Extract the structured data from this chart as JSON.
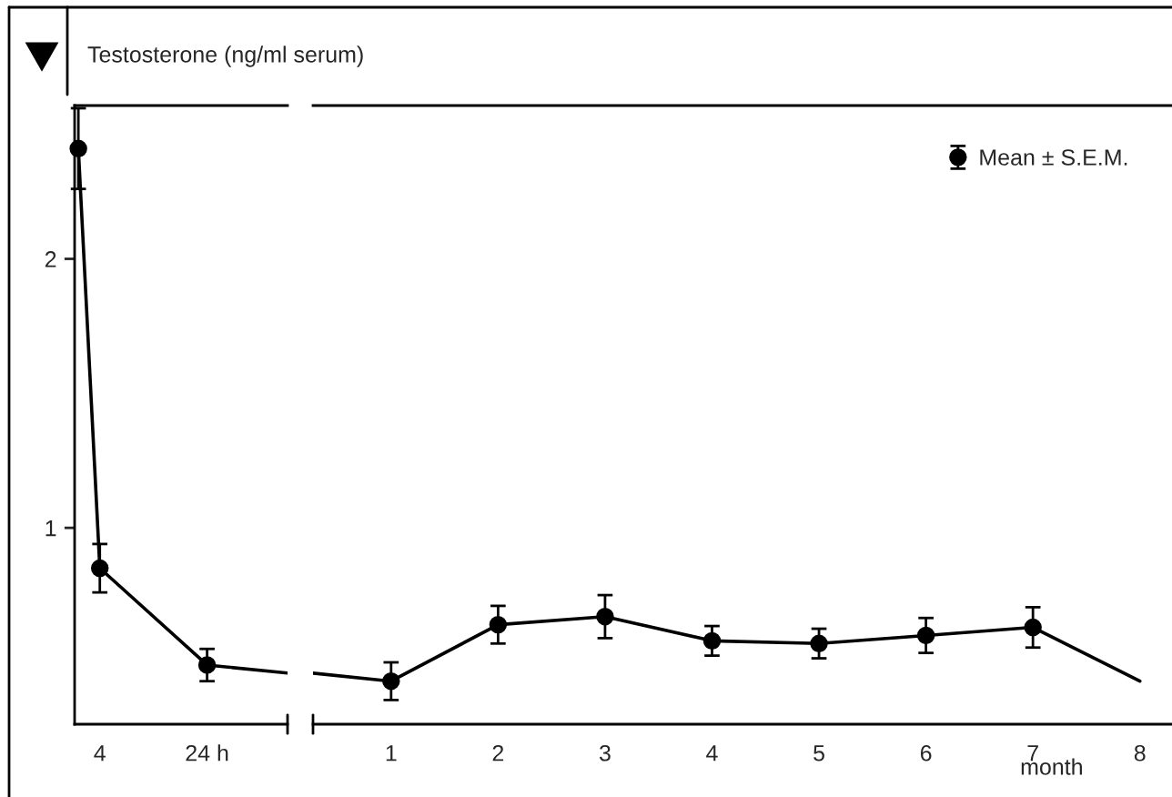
{
  "chart_data": [
    {
      "type": "line",
      "title": "Testosterone (ng/ml serum)",
      "xlim": [
        -0.7,
        39
      ],
      "xticks": [
        4,
        {
          "value": 24,
          "label": "24 h"
        }
      ],
      "ylim": [
        0.27,
        2.57
      ],
      "yticks": [
        1,
        2
      ],
      "grid": false,
      "legend": false,
      "series": [
        {
          "color": "#000000",
          "marker": "none",
          "line_style": "solid",
          "x": [
            0,
            4,
            24,
            39
          ],
          "values": [
            2.41,
            0.85,
            0.49,
            0.46
          ]
        },
        {
          "type": "scatter",
          "color": "#000000",
          "marker": "circle",
          "x": [
            0,
            4,
            24
          ],
          "values": [
            2.41,
            0.85,
            0.49
          ],
          "errors": [
            0.15,
            0.09,
            0.06
          ]
        }
      ]
    },
    {
      "type": "line",
      "xlabel": "month",
      "xlim": [
        0.27,
        8.3
      ],
      "xticks": [
        1,
        2,
        3,
        4,
        5,
        6,
        7,
        8
      ],
      "ylim": [
        0.27,
        2.57
      ],
      "tick_labels": "x",
      "grid": false,
      "legend": "top right",
      "series": [
        {
          "color": "#000000",
          "marker": "none",
          "line_style": "solid",
          "x": [
            0.27,
            1,
            2,
            3,
            4,
            5,
            6,
            7,
            8
          ],
          "values": [
            0.46,
            0.43,
            0.64,
            0.67,
            0.58,
            0.57,
            0.6,
            0.63,
            0.43
          ]
        },
        {
          "type": "scatter",
          "name": "Mean ± S.E.M.",
          "color": "#000000",
          "marker": "circle",
          "x": [
            1,
            2,
            3,
            4,
            5,
            6,
            7
          ],
          "values": [
            0.43,
            0.64,
            0.67,
            0.58,
            0.57,
            0.6,
            0.63
          ],
          "errors": [
            0.07,
            0.07,
            0.08,
            0.055,
            0.055,
            0.065,
            0.075
          ]
        }
      ]
    }
  ]
}
